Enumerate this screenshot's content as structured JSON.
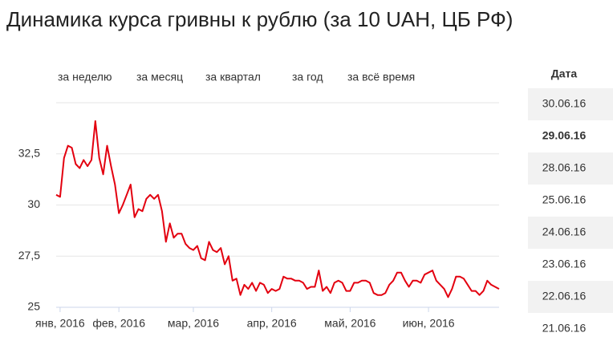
{
  "chart_data": {
    "type": "line",
    "title": "Динамика курса гривны к рублю (за 10 UAH, ЦБ РФ)",
    "categories": [
      null,
      "янв, 2016",
      null,
      null,
      null,
      null,
      null,
      null,
      null,
      null,
      null,
      null,
      null,
      null,
      null,
      null,
      "фев, 2016",
      null,
      null,
      null,
      null,
      null,
      null,
      null,
      null,
      null,
      null,
      null,
      null,
      null,
      null,
      null,
      null,
      null,
      null,
      "мар, 2016",
      null,
      null,
      null,
      null,
      null,
      null,
      null,
      null,
      null,
      null,
      null,
      null,
      null,
      null,
      null,
      null,
      null,
      null,
      null,
      "апр, 2016",
      null,
      null,
      null,
      null,
      null,
      null,
      null,
      null,
      null,
      null,
      null,
      null,
      null,
      null,
      null,
      null,
      null,
      null,
      null,
      "май, 2016",
      null,
      null,
      null,
      null,
      null,
      null,
      null,
      null,
      null,
      null,
      null,
      null,
      null,
      null,
      null,
      null,
      null,
      null,
      null,
      "июн, 2016",
      null,
      null,
      null,
      null,
      null,
      null,
      null,
      null,
      null,
      null,
      null,
      null,
      null,
      null,
      null,
      null,
      null,
      null
    ],
    "series": [
      {
        "name": "UAH",
        "color": "#e3000f",
        "values": [
          30.5,
          30.4,
          32.3,
          32.9,
          32.8,
          32.0,
          31.8,
          32.2,
          31.9,
          32.2,
          34.1,
          32.3,
          31.5,
          32.9,
          31.9,
          31.0,
          29.6,
          30.0,
          30.5,
          31.0,
          29.4,
          29.8,
          29.7,
          30.3,
          30.5,
          30.3,
          30.5,
          29.7,
          28.2,
          29.1,
          28.4,
          28.6,
          28.6,
          28.1,
          27.9,
          27.8,
          28.0,
          27.4,
          27.3,
          28.2,
          27.8,
          27.7,
          27.9,
          27.1,
          27.5,
          26.3,
          26.4,
          25.6,
          26.1,
          25.9,
          26.2,
          25.8,
          26.2,
          26.1,
          25.7,
          25.9,
          25.8,
          25.9,
          26.5,
          26.4,
          26.4,
          26.3,
          26.3,
          26.2,
          25.9,
          26.0,
          26.0,
          26.8,
          25.8,
          26.0,
          25.7,
          26.2,
          26.3,
          26.2,
          25.8,
          25.8,
          26.2,
          26.2,
          26.3,
          26.3,
          26.2,
          25.7,
          25.6,
          25.6,
          25.7,
          26.1,
          26.3,
          26.7,
          26.7,
          26.3,
          26.0,
          26.3,
          26.3,
          26.2,
          26.6,
          26.7,
          26.8,
          26.3,
          26.1,
          25.9,
          25.5,
          25.9,
          26.5,
          26.5,
          26.4,
          26.1,
          25.8,
          25.8,
          25.6,
          25.8,
          26.3,
          26.1,
          26.0,
          25.9
        ]
      }
    ],
    "ylim": [
      25,
      35
    ],
    "yticks": [
      25,
      {
        "value": 27.5,
        "label": "27,5"
      },
      30,
      {
        "value": 32.5,
        "label": "32,5"
      }
    ],
    "grid": true
  },
  "range_buttons": [
    "за неделю",
    "за месяц",
    "за квартал",
    "за год",
    "за всё время"
  ],
  "date_table": {
    "header": "Дата",
    "selected": 1,
    "rows": [
      "30.06.16",
      "29.06.16",
      "28.06.16",
      "25.06.16",
      "24.06.16",
      "23.06.16",
      "22.06.16",
      "21.06.16"
    ]
  }
}
